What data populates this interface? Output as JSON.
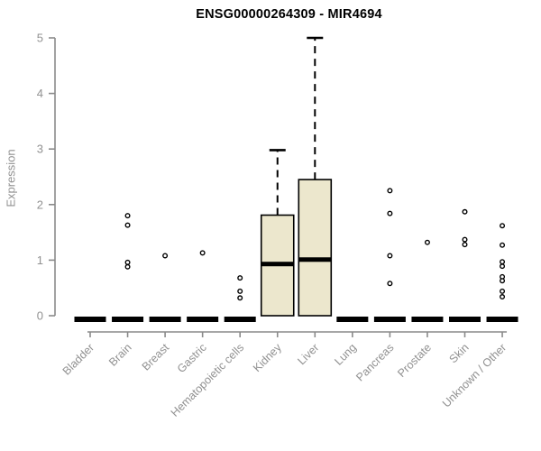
{
  "chart_data": {
    "type": "boxplot",
    "title": "ENSG00000264309 - MIR4694",
    "xlabel": "",
    "ylabel": "Expression",
    "ylim": [
      0,
      5
    ],
    "yticks": [
      0,
      1,
      2,
      3,
      4,
      5
    ],
    "grid": "off",
    "legend": "none",
    "categories": [
      "Bladder",
      "Brain",
      "Breast",
      "Gastric",
      "Hematopoietic cells",
      "Kidney",
      "Liver",
      "Lung",
      "Pancreas",
      "Prostate",
      "Skin",
      "Unknown / Other"
    ],
    "boxes": [
      {
        "category": "Bladder",
        "q1": 0,
        "median": 0,
        "q3": 0,
        "whisker_low": 0,
        "whisker_high": 0,
        "outliers": []
      },
      {
        "category": "Brain",
        "q1": 0,
        "median": 0,
        "q3": 0,
        "whisker_low": 0,
        "whisker_high": 0,
        "outliers": [
          1.8,
          1.63,
          0.96,
          0.88
        ]
      },
      {
        "category": "Breast",
        "q1": 0,
        "median": 0,
        "q3": 0,
        "whisker_low": 0,
        "whisker_high": 0,
        "outliers": [
          1.08
        ]
      },
      {
        "category": "Gastric",
        "q1": 0,
        "median": 0,
        "q3": 0,
        "whisker_low": 0,
        "whisker_high": 0,
        "outliers": [
          1.13
        ]
      },
      {
        "category": "Hematopoietic cells",
        "q1": 0,
        "median": 0,
        "q3": 0,
        "whisker_low": 0,
        "whisker_high": 0,
        "outliers": [
          0.68,
          0.44,
          0.32
        ]
      },
      {
        "category": "Kidney",
        "q1": 0,
        "median": 0.93,
        "q3": 1.81,
        "whisker_low": 0,
        "whisker_high": 2.98,
        "outliers": []
      },
      {
        "category": "Liver",
        "q1": 0,
        "median": 1.01,
        "q3": 2.45,
        "whisker_low": 0,
        "whisker_high": 5.0,
        "outliers": []
      },
      {
        "category": "Lung",
        "q1": 0,
        "median": 0,
        "q3": 0,
        "whisker_low": 0,
        "whisker_high": 0,
        "outliers": []
      },
      {
        "category": "Pancreas",
        "q1": 0,
        "median": 0,
        "q3": 0,
        "whisker_low": 0,
        "whisker_high": 0,
        "outliers": [
          2.25,
          1.84,
          1.08,
          0.58
        ]
      },
      {
        "category": "Prostate",
        "q1": 0,
        "median": 0,
        "q3": 0,
        "whisker_low": 0,
        "whisker_high": 0,
        "outliers": [
          1.32
        ]
      },
      {
        "category": "Skin",
        "q1": 0,
        "median": 0,
        "q3": 0,
        "whisker_low": 0,
        "whisker_high": 0,
        "outliers": [
          1.87,
          1.37,
          1.28
        ]
      },
      {
        "category": "Unknown / Other",
        "q1": 0,
        "median": 0,
        "q3": 0,
        "whisker_low": 0,
        "whisker_high": 0,
        "outliers": [
          1.62,
          1.27,
          0.97,
          0.89,
          0.7,
          0.63,
          0.44,
          0.34
        ]
      }
    ]
  },
  "colors": {
    "background": "#ffffff",
    "box_fill": "#ece7cd",
    "box_stroke": "#000000",
    "median": "#000000",
    "whisker": "#000000",
    "outlier_stroke": "#000000",
    "axis_line": "#8a8a8a",
    "tick_label": "#919191",
    "title": "#000000"
  }
}
